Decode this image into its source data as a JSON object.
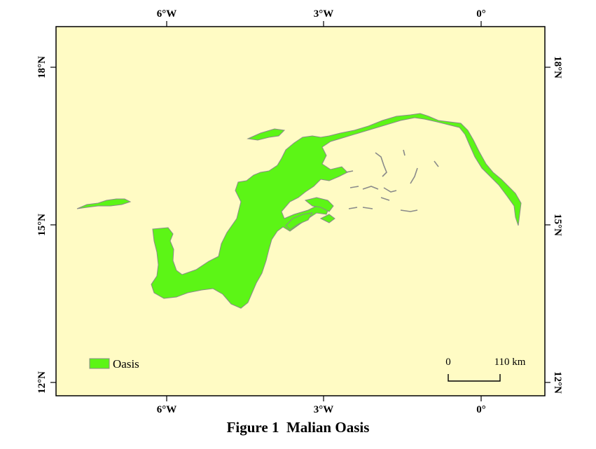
{
  "map": {
    "background_color": "#fffbc4",
    "oasis_color": "#5cf516",
    "outline_color": "#8a8a8a",
    "lon_ticks": [
      "6°W",
      "3°W",
      "0°"
    ],
    "lat_ticks": [
      "18°N",
      "15°N",
      "12°N"
    ],
    "legend": {
      "label": "Oasis"
    },
    "scale_bar": {
      "start_label": "0",
      "end_label": "110 km"
    }
  },
  "caption": "Figure 1  Malian Oasis"
}
